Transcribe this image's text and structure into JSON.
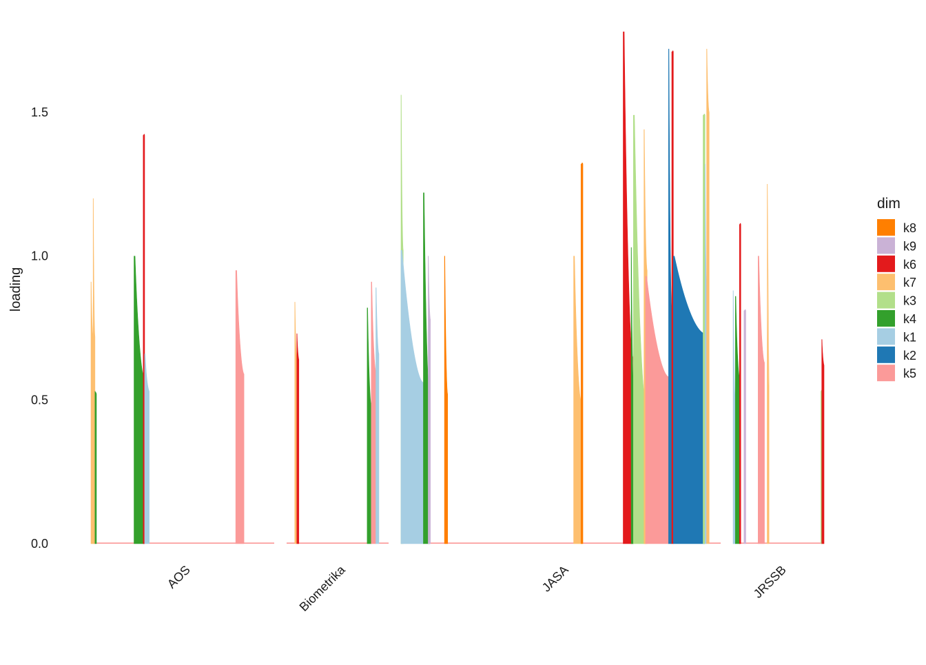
{
  "chart_data": {
    "type": "bar",
    "title": "",
    "xlabel": "",
    "ylabel": "loading",
    "ylim": [
      0,
      1.8
    ],
    "y_ticks": [
      0.0,
      0.5,
      1.0,
      1.5
    ],
    "y_tick_labels": [
      "0.0",
      "0.5",
      "1.0",
      "1.5"
    ],
    "grid": false,
    "legend": {
      "title": "dim",
      "placement": "right",
      "entries": [
        {
          "key": "k8",
          "color": "#FF7F00"
        },
        {
          "key": "k9",
          "color": "#CAB2D6"
        },
        {
          "key": "k6",
          "color": "#E31A1C"
        },
        {
          "key": "k7",
          "color": "#FDBF6F"
        },
        {
          "key": "k3",
          "color": "#B2DF8A"
        },
        {
          "key": "k4",
          "color": "#33A02C"
        },
        {
          "key": "k1",
          "color": "#A6CEE3"
        },
        {
          "key": "k2",
          "color": "#1F78B4"
        },
        {
          "key": "k5",
          "color": "#FB9A99"
        }
      ]
    },
    "baseline": {
      "value": 0.004,
      "color": "#FB9A99"
    },
    "facets": [
      {
        "name": "AOS",
        "span": [
          0,
          100
        ],
        "segments": [
          {
            "dim": "k7",
            "x0": 0.0,
            "x1": 1.2,
            "ymax": 0.91,
            "ymin": 0.72
          },
          {
            "dim": "k7",
            "x0": 1.2,
            "x1": 2.2,
            "ymax": 1.2,
            "ymin": 0.72
          },
          {
            "dim": "k4",
            "x0": 2.2,
            "x1": 3.0,
            "ymax": 0.53,
            "ymin": 0.52
          },
          {
            "dim": "k4",
            "x0": 23.5,
            "x1": 29.0,
            "ymax": 1.0,
            "ymin": 0.58
          },
          {
            "dim": "k6",
            "x0": 28.5,
            "x1": 29.3,
            "ymax": 1.42,
            "ymin": 1.42
          },
          {
            "dim": "k1",
            "x0": 29.3,
            "x1": 31.8,
            "ymax": 0.66,
            "ymin": 0.53
          },
          {
            "dim": "k5",
            "x0": 79.0,
            "x1": 83.5,
            "ymax": 0.95,
            "ymin": 0.59
          }
        ]
      },
      {
        "name": "Biometrika",
        "span": [
          0,
          100
        ],
        "segments": [
          {
            "dim": "k7",
            "x0": 8.0,
            "x1": 10.0,
            "ymax": 0.84,
            "ymin": 0.64
          },
          {
            "dim": "k6",
            "x0": 10.0,
            "x1": 12.0,
            "ymax": 0.73,
            "ymin": 0.64
          },
          {
            "dim": "k4",
            "x0": 79.0,
            "x1": 83.0,
            "ymax": 0.82,
            "ymin": 0.48
          },
          {
            "dim": "k5",
            "x0": 83.0,
            "x1": 87.5,
            "ymax": 0.91,
            "ymin": 0.6
          },
          {
            "dim": "k1",
            "x0": 87.5,
            "x1": 90.5,
            "ymax": 0.89,
            "ymin": 0.66
          }
        ]
      },
      {
        "name": "JASA",
        "span": [
          0,
          100
        ],
        "segments": [
          {
            "dim": "k3",
            "x0": 0.0,
            "x1": 0.7,
            "ymax": 1.56,
            "ymin": 1.02
          },
          {
            "dim": "k1",
            "x0": 0.0,
            "x1": 7.0,
            "ymax": 1.02,
            "ymin": 0.56
          },
          {
            "dim": "k4",
            "x0": 7.0,
            "x1": 9.0,
            "ymax": 1.22,
            "ymin": 0.5
          },
          {
            "dim": "k9",
            "x0": 8.5,
            "x1": 9.2,
            "ymax": 1.0,
            "ymin": 0.78
          },
          {
            "dim": "k8",
            "x0": 13.6,
            "x1": 14.6,
            "ymax": 1.0,
            "ymin": 0.52
          },
          {
            "dim": "k7",
            "x0": 54.0,
            "x1": 56.3,
            "ymax": 1.0,
            "ymin": 0.5
          },
          {
            "dim": "k8",
            "x0": 56.3,
            "x1": 56.9,
            "ymax": 1.32,
            "ymin": 1.32
          },
          {
            "dim": "k6",
            "x0": 69.5,
            "x1": 72.5,
            "ymax": 1.78,
            "ymin": 0.65
          },
          {
            "dim": "k4",
            "x0": 72.0,
            "x1": 72.7,
            "ymax": 1.03,
            "ymin": 0.56
          },
          {
            "dim": "k3",
            "x0": 72.7,
            "x1": 76.5,
            "ymax": 1.49,
            "ymin": 0.5
          },
          {
            "dim": "k7",
            "x0": 76.0,
            "x1": 77.0,
            "ymax": 1.44,
            "ymin": 0.95
          },
          {
            "dim": "k5",
            "x0": 76.5,
            "x1": 83.7,
            "ymax": 0.93,
            "ymin": 0.58
          },
          {
            "dim": "k2",
            "x0": 83.7,
            "x1": 84.7,
            "ymax": 1.72,
            "ymin": 0.82
          },
          {
            "dim": "k6",
            "x0": 84.7,
            "x1": 85.2,
            "ymax": 1.71,
            "ymin": 1.71
          },
          {
            "dim": "k2",
            "x0": 85.2,
            "x1": 95.0,
            "ymax": 1.0,
            "ymin": 0.73
          },
          {
            "dim": "k3",
            "x0": 94.5,
            "x1": 95.1,
            "ymax": 1.49,
            "ymin": 1.49
          },
          {
            "dim": "k1",
            "x0": 95.1,
            "x1": 95.6,
            "ymax": 1.32,
            "ymin": 0.9
          },
          {
            "dim": "k7",
            "x0": 95.6,
            "x1": 96.4,
            "ymax": 1.72,
            "ymin": 1.5
          }
        ]
      },
      {
        "name": "JRSSB",
        "span": [
          0,
          100
        ],
        "segments": [
          {
            "dim": "k1",
            "x0": 0.0,
            "x1": 2.5,
            "ymax": 0.88,
            "ymin": 0.5
          },
          {
            "dim": "k4",
            "x0": 2.5,
            "x1": 7.0,
            "ymax": 0.86,
            "ymin": 0.58
          },
          {
            "dim": "k6",
            "x0": 7.0,
            "x1": 8.5,
            "ymax": 1.11,
            "ymin": 1.11
          },
          {
            "dim": "k9",
            "x0": 12.0,
            "x1": 14.0,
            "ymax": 0.81,
            "ymin": 0.81
          },
          {
            "dim": "k5",
            "x0": 27.5,
            "x1": 34.5,
            "ymax": 1.0,
            "ymin": 0.63
          },
          {
            "dim": "k7",
            "x0": 37.5,
            "x1": 39.5,
            "ymax": 1.25,
            "ymin": 0.55
          },
          {
            "dim": "k3",
            "x0": 96.5,
            "x1": 97.5,
            "ymax": 0.53,
            "ymin": 0.53
          },
          {
            "dim": "k6",
            "x0": 97.5,
            "x1": 100.0,
            "ymax": 0.71,
            "ymin": 0.62
          }
        ]
      }
    ]
  }
}
